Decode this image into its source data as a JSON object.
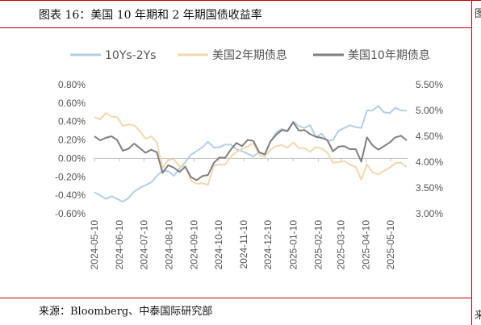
{
  "header": {
    "title": "图表 16：美国 10 年期和 2 年期国债收益率",
    "right_clip_top": "图",
    "right_clip_bottom": "来"
  },
  "source": "来源：Bloomberg、中泰国际研究部",
  "chart_data": {
    "type": "line",
    "legend_position": "top",
    "grid": false,
    "left_axis": {
      "min": -0.006,
      "max": 0.008,
      "tick_labels": [
        "-0.60%",
        "-0.40%",
        "-0.20%",
        "0.00%",
        "0.20%",
        "0.40%",
        "0.60%",
        "0.80%"
      ],
      "tick_values": [
        -0.006,
        -0.004,
        -0.002,
        0.0,
        0.002,
        0.004,
        0.006,
        0.008
      ]
    },
    "right_axis": {
      "min": 3.0,
      "max": 5.5,
      "tick_labels": [
        "3.00%",
        "3.50%",
        "4.00%",
        "4.50%",
        "5.00%",
        "5.50%"
      ],
      "tick_values": [
        3.0,
        3.5,
        4.0,
        4.5,
        5.0,
        5.5
      ]
    },
    "x_ticks": [
      "2024-05-10",
      "2024-06-10",
      "2024-07-10",
      "2024-08-10",
      "2024-09-10",
      "2024-10-10",
      "2024-11-10",
      "2024-12-10",
      "2025-01-10",
      "2025-02-10",
      "2025-03-10",
      "2025-04-10",
      "2025-05-10"
    ],
    "x_range": [
      "2024-05-10",
      "2025-05-31"
    ],
    "series": [
      {
        "name": "10Ys-2Ys",
        "axis": "left",
        "color": "#b4cde8",
        "points": [
          [
            "2024-05-10",
            -0.0037
          ],
          [
            "2024-05-17",
            -0.004
          ],
          [
            "2024-05-24",
            -0.0044
          ],
          [
            "2024-05-31",
            -0.0041
          ],
          [
            "2024-06-07",
            -0.0044
          ],
          [
            "2024-06-14",
            -0.0047
          ],
          [
            "2024-06-21",
            -0.0043
          ],
          [
            "2024-06-28",
            -0.0036
          ],
          [
            "2024-07-05",
            -0.0032
          ],
          [
            "2024-07-12",
            -0.0029
          ],
          [
            "2024-07-19",
            -0.0026
          ],
          [
            "2024-07-26",
            -0.0019
          ],
          [
            "2024-08-02",
            -0.0013
          ],
          [
            "2024-08-09",
            -0.0014
          ],
          [
            "2024-08-16",
            -0.0019
          ],
          [
            "2024-08-23",
            -0.0011
          ],
          [
            "2024-08-30",
            -0.0004
          ],
          [
            "2024-09-06",
            0.0004
          ],
          [
            "2024-09-13",
            0.0008
          ],
          [
            "2024-09-20",
            0.0012
          ],
          [
            "2024-09-27",
            0.0018
          ],
          [
            "2024-10-04",
            0.0012
          ],
          [
            "2024-10-11",
            0.0012
          ],
          [
            "2024-10-18",
            0.0015
          ],
          [
            "2024-10-25",
            0.0015
          ],
          [
            "2024-11-01",
            0.001
          ],
          [
            "2024-11-08",
            0.0008
          ],
          [
            "2024-11-15",
            0.0005
          ],
          [
            "2024-11-22",
            0.0002
          ],
          [
            "2024-11-29",
            0.0007
          ],
          [
            "2024-12-06",
            0.0004
          ],
          [
            "2024-12-13",
            0.0018
          ],
          [
            "2024-12-20",
            0.0028
          ],
          [
            "2024-12-27",
            0.0032
          ],
          [
            "2025-01-03",
            0.003
          ],
          [
            "2025-01-10",
            0.004
          ],
          [
            "2025-01-17",
            0.0035
          ],
          [
            "2025-01-24",
            0.0033
          ],
          [
            "2025-01-31",
            0.0036
          ],
          [
            "2025-02-07",
            0.0023
          ],
          [
            "2025-02-14",
            0.0027
          ],
          [
            "2025-02-21",
            0.0019
          ],
          [
            "2025-02-28",
            0.002
          ],
          [
            "2025-03-07",
            0.003
          ],
          [
            "2025-03-14",
            0.0033
          ],
          [
            "2025-03-21",
            0.0036
          ],
          [
            "2025-03-28",
            0.0034
          ],
          [
            "2025-04-04",
            0.0033
          ],
          [
            "2025-04-11",
            0.0052
          ],
          [
            "2025-04-18",
            0.0052
          ],
          [
            "2025-04-25",
            0.0057
          ],
          [
            "2025-05-02",
            0.005
          ],
          [
            "2025-05-09",
            0.0049
          ],
          [
            "2025-05-16",
            0.0055
          ],
          [
            "2025-05-23",
            0.0052
          ],
          [
            "2025-05-30",
            0.0052
          ]
        ]
      },
      {
        "name": "美国2年期债息",
        "axis": "right",
        "color": "#f2d7ae",
        "points": [
          [
            "2024-05-10",
            4.87
          ],
          [
            "2024-05-17",
            4.83
          ],
          [
            "2024-05-24",
            4.95
          ],
          [
            "2024-05-31",
            4.88
          ],
          [
            "2024-06-07",
            4.87
          ],
          [
            "2024-06-14",
            4.7
          ],
          [
            "2024-06-21",
            4.73
          ],
          [
            "2024-06-28",
            4.71
          ],
          [
            "2024-07-05",
            4.6
          ],
          [
            "2024-07-12",
            4.45
          ],
          [
            "2024-07-19",
            4.5
          ],
          [
            "2024-07-26",
            4.38
          ],
          [
            "2024-08-02",
            3.88
          ],
          [
            "2024-08-09",
            4.05
          ],
          [
            "2024-08-16",
            4.05
          ],
          [
            "2024-08-23",
            3.92
          ],
          [
            "2024-08-30",
            3.92
          ],
          [
            "2024-09-06",
            3.65
          ],
          [
            "2024-09-13",
            3.58
          ],
          [
            "2024-09-20",
            3.59
          ],
          [
            "2024-09-27",
            3.56
          ],
          [
            "2024-10-04",
            3.93
          ],
          [
            "2024-10-11",
            3.96
          ],
          [
            "2024-10-18",
            3.95
          ],
          [
            "2024-10-25",
            4.1
          ],
          [
            "2024-11-01",
            4.2
          ],
          [
            "2024-11-08",
            4.25
          ],
          [
            "2024-11-15",
            4.3
          ],
          [
            "2024-11-22",
            4.37
          ],
          [
            "2024-11-29",
            4.15
          ],
          [
            "2024-12-06",
            4.1
          ],
          [
            "2024-12-13",
            4.24
          ],
          [
            "2024-12-20",
            4.31
          ],
          [
            "2024-12-27",
            4.33
          ],
          [
            "2025-01-03",
            4.28
          ],
          [
            "2025-01-10",
            4.38
          ],
          [
            "2025-01-17",
            4.27
          ],
          [
            "2025-01-24",
            4.27
          ],
          [
            "2025-01-31",
            4.2
          ],
          [
            "2025-02-07",
            4.29
          ],
          [
            "2025-02-14",
            4.26
          ],
          [
            "2025-02-21",
            4.19
          ],
          [
            "2025-02-28",
            3.99
          ],
          [
            "2025-03-07",
            4.0
          ],
          [
            "2025-03-14",
            4.02
          ],
          [
            "2025-03-21",
            3.95
          ],
          [
            "2025-03-28",
            3.91
          ],
          [
            "2025-04-04",
            3.66
          ],
          [
            "2025-04-11",
            3.96
          ],
          [
            "2025-04-18",
            3.8
          ],
          [
            "2025-04-25",
            3.76
          ],
          [
            "2025-05-02",
            3.83
          ],
          [
            "2025-05-09",
            3.89
          ],
          [
            "2025-05-16",
            3.98
          ],
          [
            "2025-05-23",
            3.99
          ],
          [
            "2025-05-30",
            3.9
          ]
        ]
      },
      {
        "name": "美国10年期债息",
        "axis": "right",
        "color": "#7f7f7f",
        "points": [
          [
            "2024-05-10",
            4.5
          ],
          [
            "2024-05-17",
            4.42
          ],
          [
            "2024-05-24",
            4.47
          ],
          [
            "2024-05-31",
            4.5
          ],
          [
            "2024-06-07",
            4.43
          ],
          [
            "2024-06-14",
            4.22
          ],
          [
            "2024-06-21",
            4.26
          ],
          [
            "2024-06-28",
            4.36
          ],
          [
            "2024-07-05",
            4.27
          ],
          [
            "2024-07-12",
            4.18
          ],
          [
            "2024-07-19",
            4.24
          ],
          [
            "2024-07-26",
            4.19
          ],
          [
            "2024-08-02",
            3.79
          ],
          [
            "2024-08-09",
            3.94
          ],
          [
            "2024-08-16",
            3.89
          ],
          [
            "2024-08-23",
            3.81
          ],
          [
            "2024-08-30",
            3.91
          ],
          [
            "2024-09-06",
            3.71
          ],
          [
            "2024-09-13",
            3.65
          ],
          [
            "2024-09-20",
            3.73
          ],
          [
            "2024-09-27",
            3.75
          ],
          [
            "2024-10-04",
            3.98
          ],
          [
            "2024-10-11",
            4.09
          ],
          [
            "2024-10-18",
            4.08
          ],
          [
            "2024-10-25",
            4.24
          ],
          [
            "2024-11-01",
            4.37
          ],
          [
            "2024-11-08",
            4.31
          ],
          [
            "2024-11-15",
            4.43
          ],
          [
            "2024-11-22",
            4.41
          ],
          [
            "2024-11-29",
            4.19
          ],
          [
            "2024-12-06",
            4.15
          ],
          [
            "2024-12-13",
            4.4
          ],
          [
            "2024-12-20",
            4.53
          ],
          [
            "2024-12-27",
            4.62
          ],
          [
            "2025-01-03",
            4.6
          ],
          [
            "2025-01-10",
            4.77
          ],
          [
            "2025-01-17",
            4.61
          ],
          [
            "2025-01-24",
            4.62
          ],
          [
            "2025-01-31",
            4.54
          ],
          [
            "2025-02-07",
            4.49
          ],
          [
            "2025-02-14",
            4.47
          ],
          [
            "2025-02-21",
            4.43
          ],
          [
            "2025-02-28",
            4.21
          ],
          [
            "2025-03-07",
            4.3
          ],
          [
            "2025-03-14",
            4.31
          ],
          [
            "2025-03-21",
            4.25
          ],
          [
            "2025-03-28",
            4.25
          ],
          [
            "2025-04-04",
            4.01
          ],
          [
            "2025-04-11",
            4.48
          ],
          [
            "2025-04-18",
            4.32
          ],
          [
            "2025-04-25",
            4.24
          ],
          [
            "2025-05-02",
            4.31
          ],
          [
            "2025-05-09",
            4.38
          ],
          [
            "2025-05-16",
            4.48
          ],
          [
            "2025-05-23",
            4.51
          ],
          [
            "2025-05-30",
            4.42
          ]
        ]
      }
    ]
  }
}
